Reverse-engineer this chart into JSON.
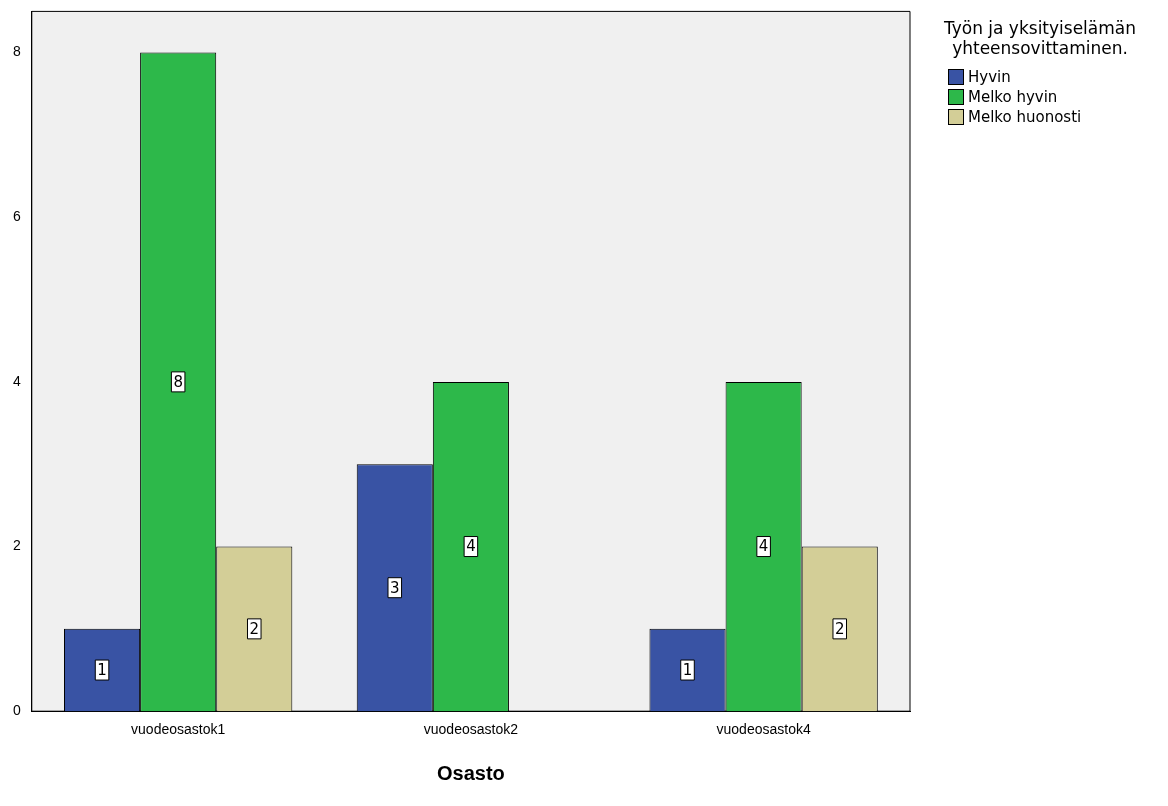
{
  "chart_data": {
    "type": "bar",
    "xlabel": "Osasto",
    "legend_title": "Työn ja yksityiselämän yhteensovittaminen.",
    "categories": [
      "vuodeosastok1",
      "vuodeosastok2",
      "vuodeosastok4"
    ],
    "series": [
      {
        "name": "Hyvin",
        "color": "#3953a4",
        "values": [
          1,
          3,
          1
        ]
      },
      {
        "name": "Melko hyvin",
        "color": "#2db84a",
        "values": [
          8,
          4,
          4
        ]
      },
      {
        "name": "Melko huonosti",
        "color": "#d3ce97",
        "values": [
          2,
          null,
          2
        ]
      }
    ],
    "ylim": [
      0,
      8.5
    ],
    "yticks": [
      0,
      2,
      4,
      6,
      8
    ],
    "grid": false,
    "legend": "top right",
    "data_labels": true
  }
}
